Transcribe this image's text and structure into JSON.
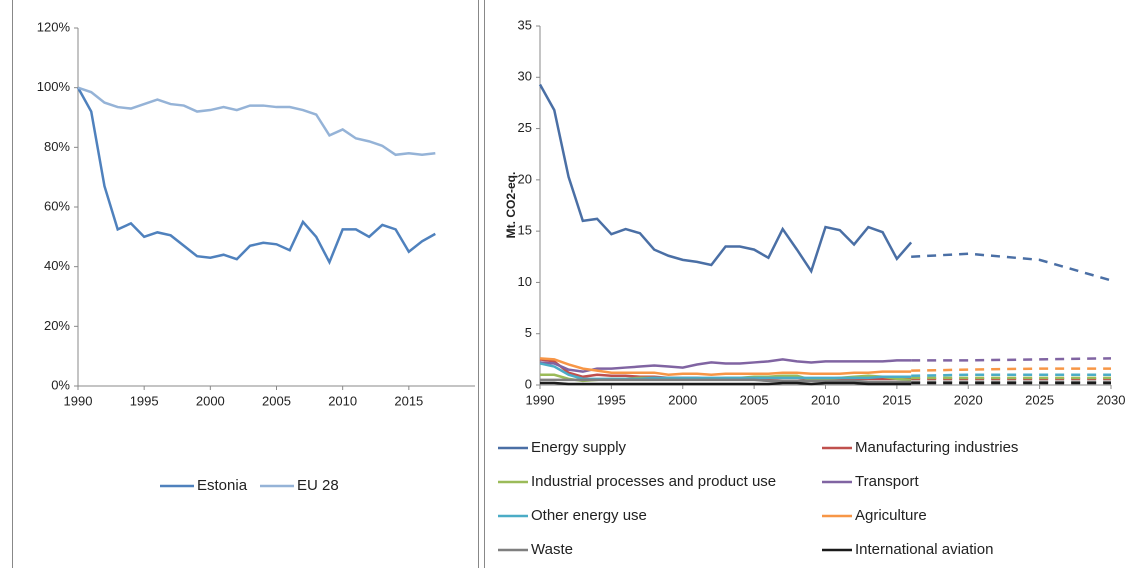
{
  "chart_data": [
    {
      "type": "line",
      "x": [
        1990,
        1991,
        1992,
        1993,
        1994,
        1995,
        1996,
        1997,
        1998,
        1999,
        2000,
        2001,
        2002,
        2003,
        2004,
        2005,
        2006,
        2007,
        2008,
        2009,
        2010,
        2011,
        2012,
        2013,
        2014,
        2015,
        2016,
        2017
      ],
      "xlim": [
        1990,
        2020
      ],
      "xticks": [
        1990,
        1995,
        2000,
        2005,
        2010,
        2015
      ],
      "ylim": [
        0,
        120
      ],
      "yticks": [
        {
          "value": 0,
          "label": "0%"
        },
        {
          "value": 20,
          "label": "20%"
        },
        {
          "value": 40,
          "label": "40%"
        },
        {
          "value": 60,
          "label": "60%"
        },
        {
          "value": 80,
          "label": "80%"
        },
        {
          "value": 100,
          "label": "100%"
        },
        {
          "value": 120,
          "label": "120%"
        }
      ],
      "legend": "bottom",
      "series": [
        {
          "name": "Estonia",
          "color": "#4f81bd",
          "values": [
            100,
            92,
            67,
            52.5,
            54.5,
            50,
            51.5,
            50.5,
            47,
            43.5,
            43,
            44,
            42.5,
            47,
            48,
            47.5,
            45.5,
            55,
            50,
            41.5,
            52.5,
            52.5,
            50,
            54,
            52.5,
            45,
            48.5,
            51
          ]
        },
        {
          "name": "EU 28",
          "color": "#95b3d7",
          "values": [
            100,
            98.5,
            95,
            93.5,
            93,
            94.5,
            96,
            94.5,
            94,
            92,
            92.5,
            93.5,
            92.5,
            94,
            94,
            93.5,
            93.5,
            92.5,
            91,
            84,
            86,
            83,
            82,
            80.5,
            77.5,
            78,
            77.5,
            78
          ]
        }
      ]
    },
    {
      "type": "line",
      "y_label": "Mt. CO2-eq.",
      "x": [
        1990,
        1991,
        1992,
        1993,
        1994,
        1995,
        1996,
        1997,
        1998,
        1999,
        2000,
        2001,
        2002,
        2003,
        2004,
        2005,
        2006,
        2007,
        2008,
        2009,
        2010,
        2011,
        2012,
        2013,
        2014,
        2015,
        2016
      ],
      "projection_x": [
        2016,
        2020,
        2025,
        2030
      ],
      "xlim": [
        1990,
        2030
      ],
      "xticks": [
        1990,
        1995,
        2000,
        2005,
        2010,
        2015,
        2020,
        2025,
        2030
      ],
      "ylim": [
        0,
        35
      ],
      "yticks": [
        0,
        5,
        10,
        15,
        20,
        25,
        30,
        35
      ],
      "legend": "bottom",
      "series": [
        {
          "name": "Energy supply",
          "color": "#4a6fa5",
          "values": [
            29.3,
            26.8,
            20.3,
            16,
            16.2,
            14.7,
            15.2,
            14.8,
            13.2,
            12.6,
            12.2,
            12,
            11.7,
            13.5,
            13.5,
            13.2,
            12.4,
            15.2,
            13.2,
            11.1,
            15.4,
            15.1,
            13.7,
            15.4,
            14.9,
            12.3,
            13.9
          ],
          "projection": [
            12.5,
            12.8,
            12.2,
            10.2
          ]
        },
        {
          "name": "Manufacturing industries",
          "color": "#c0504d",
          "values": [
            2.5,
            2.3,
            1.2,
            0.8,
            1,
            0.9,
            0.9,
            0.8,
            0.8,
            0.7,
            0.7,
            0.7,
            0.6,
            0.6,
            0.6,
            0.6,
            0.6,
            0.7,
            0.7,
            0.5,
            0.6,
            0.6,
            0.6,
            0.6,
            0.6,
            0.6,
            0.6
          ],
          "projection": [
            0.6,
            0.6,
            0.6,
            0.6
          ]
        },
        {
          "name": "Industrial processes and product use",
          "color": "#9bbb59",
          "values": [
            1,
            1,
            0.6,
            0.4,
            0.5,
            0.6,
            0.6,
            0.7,
            0.7,
            0.6,
            0.6,
            0.6,
            0.6,
            0.7,
            0.7,
            0.8,
            0.8,
            0.9,
            0.9,
            0.5,
            0.6,
            0.7,
            0.8,
            0.9,
            0.8,
            0.6,
            0.5
          ],
          "projection": [
            0.7,
            0.7,
            0.7,
            0.7
          ]
        },
        {
          "name": "Transport",
          "color": "#8064a2",
          "values": [
            2.2,
            2.1,
            1.5,
            1.3,
            1.6,
            1.6,
            1.7,
            1.8,
            1.9,
            1.8,
            1.7,
            2,
            2.2,
            2.1,
            2.1,
            2.2,
            2.3,
            2.5,
            2.3,
            2.2,
            2.3,
            2.3,
            2.3,
            2.3,
            2.3,
            2.4,
            2.4
          ],
          "projection": [
            2.4,
            2.4,
            2.5,
            2.6
          ]
        },
        {
          "name": "Other energy use",
          "color": "#4bacc6",
          "values": [
            2.1,
            1.8,
            1,
            0.6,
            0.6,
            0.6,
            0.6,
            0.6,
            0.7,
            0.7,
            0.7,
            0.7,
            0.7,
            0.7,
            0.7,
            0.7,
            0.7,
            0.7,
            0.7,
            0.7,
            0.7,
            0.7,
            0.7,
            0.7,
            0.8,
            0.8,
            0.8
          ],
          "projection": [
            0.9,
            1,
            1,
            1
          ]
        },
        {
          "name": "Agriculture",
          "color": "#f79646",
          "values": [
            2.6,
            2.5,
            2,
            1.6,
            1.4,
            1.2,
            1.2,
            1.2,
            1.2,
            1,
            1.1,
            1.1,
            1,
            1.1,
            1.1,
            1.1,
            1.1,
            1.2,
            1.2,
            1.1,
            1.1,
            1.1,
            1.2,
            1.2,
            1.3,
            1.3,
            1.3
          ],
          "projection": [
            1.4,
            1.5,
            1.6,
            1.6
          ]
        },
        {
          "name": "Waste",
          "color": "#7f7f7f",
          "values": [
            0.5,
            0.5,
            0.5,
            0.5,
            0.5,
            0.5,
            0.5,
            0.5,
            0.5,
            0.5,
            0.5,
            0.5,
            0.5,
            0.5,
            0.5,
            0.5,
            0.4,
            0.4,
            0.4,
            0.4,
            0.4,
            0.4,
            0.4,
            0.3,
            0.3,
            0.3,
            0.3
          ],
          "projection": [
            0.3,
            0.3,
            0.3,
            0.3
          ]
        },
        {
          "name": "International aviation",
          "color": "#1a1a1a",
          "values": [
            0.2,
            0.2,
            0.1,
            0.1,
            0.1,
            0.1,
            0.1,
            0.1,
            0.1,
            0.1,
            0.1,
            0.1,
            0.1,
            0.1,
            0.1,
            0.1,
            0.1,
            0.2,
            0.2,
            0.1,
            0.2,
            0.2,
            0.2,
            0.1,
            0.1,
            0.1,
            0.1
          ],
          "projection": [
            0.2,
            0.2,
            0.2,
            0.2
          ]
        }
      ]
    }
  ]
}
